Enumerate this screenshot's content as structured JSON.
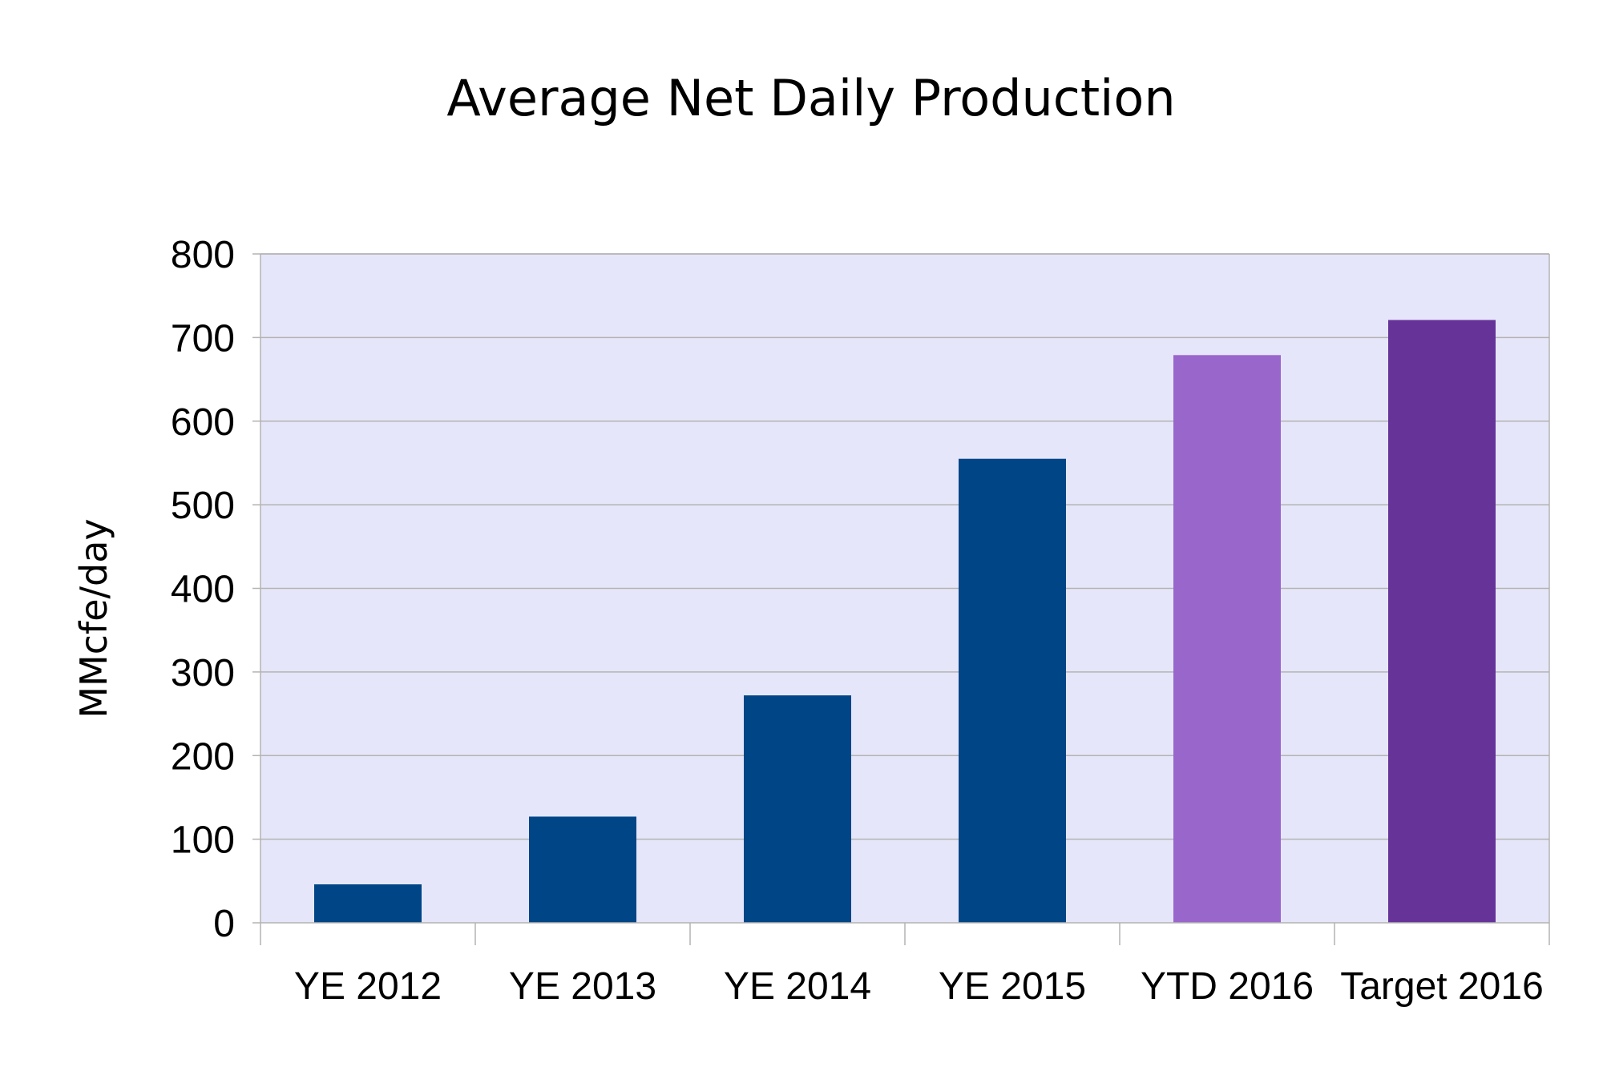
{
  "chart_data": {
    "type": "bar",
    "title": "Average Net Daily Production",
    "xlabel": "",
    "ylabel": "MMcfe/day",
    "categories": [
      "YE 2012",
      "YE 2013",
      "YE 2014",
      "YE 2015",
      "YTD 2016",
      "Target 2016"
    ],
    "values": [
      46,
      127,
      272,
      555,
      679,
      721
    ],
    "bar_colors": [
      "#004586",
      "#004586",
      "#004586",
      "#004586",
      "#9966cc",
      "#663399"
    ],
    "ylim": [
      0,
      800
    ],
    "yticks": [
      0,
      100,
      200,
      300,
      400,
      500,
      600,
      700,
      800
    ],
    "grid": true,
    "legend": "none"
  },
  "colors": {
    "plot_background": "#e6e6fa",
    "grid_line": "#b3b3b3",
    "axis_line": "#b3b3b3"
  }
}
